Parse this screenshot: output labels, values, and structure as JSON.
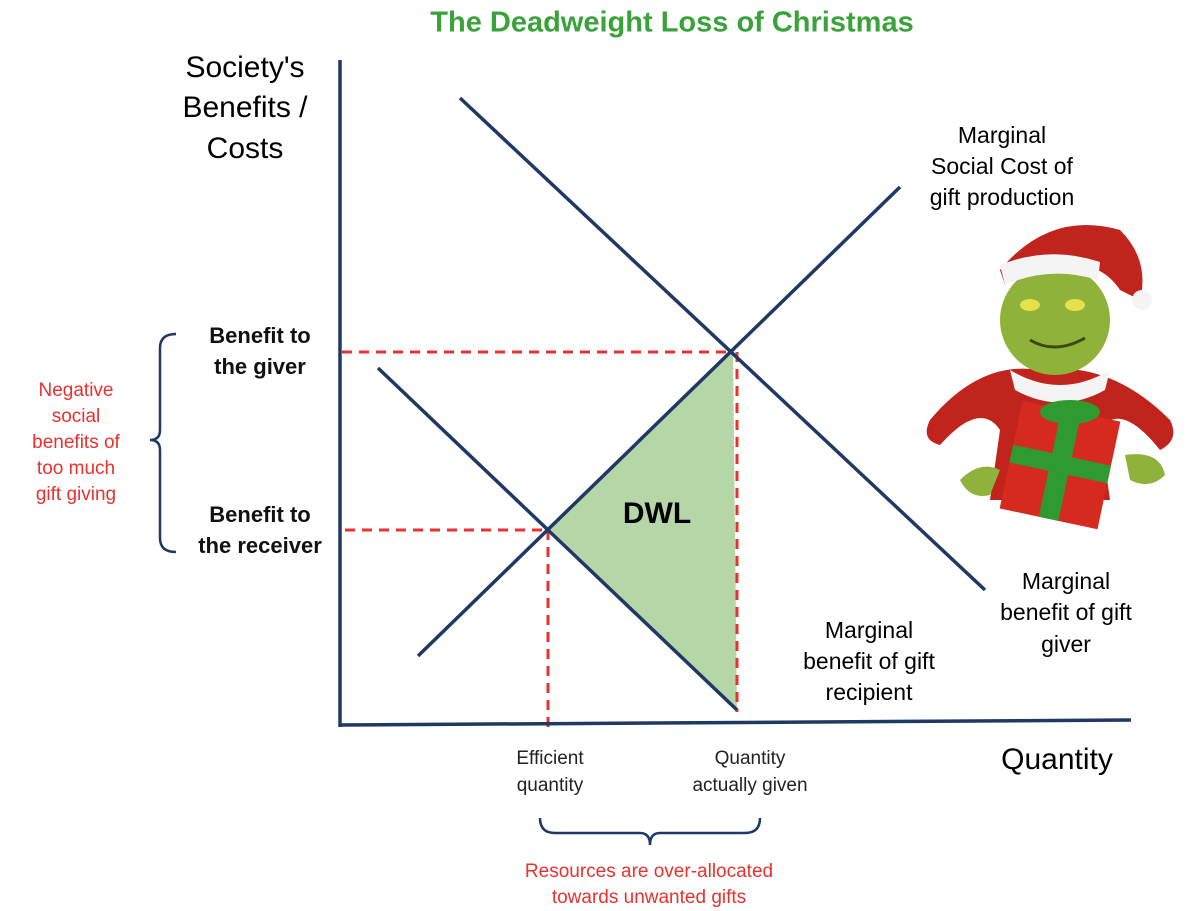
{
  "title": "The Deadweight Loss of Christmas",
  "y_axis_label": [
    "Society's",
    "Benefits /",
    "Costs"
  ],
  "x_axis_label": "Quantity",
  "price_labels": {
    "giver": [
      "Benefit to",
      "the giver"
    ],
    "receiver": [
      "Benefit to",
      "the receiver"
    ]
  },
  "left_annotation": [
    "Negative",
    "social",
    "benefits of",
    "too much",
    "gift giving"
  ],
  "curves": {
    "msc": [
      "Marginal",
      "Social Cost of",
      "gift production"
    ],
    "mb_giver": [
      "Marginal",
      "benefit of gift",
      "giver"
    ],
    "mb_recipient": [
      "Marginal",
      "benefit of gift",
      "recipient"
    ]
  },
  "area_label": "DWL",
  "quantity_labels": {
    "efficient": [
      "Efficient",
      "quantity"
    ],
    "actual": [
      "Quantity",
      "actually given"
    ]
  },
  "bottom_annotation": [
    "Resources are over-allocated",
    "towards unwanted gifts"
  ]
}
